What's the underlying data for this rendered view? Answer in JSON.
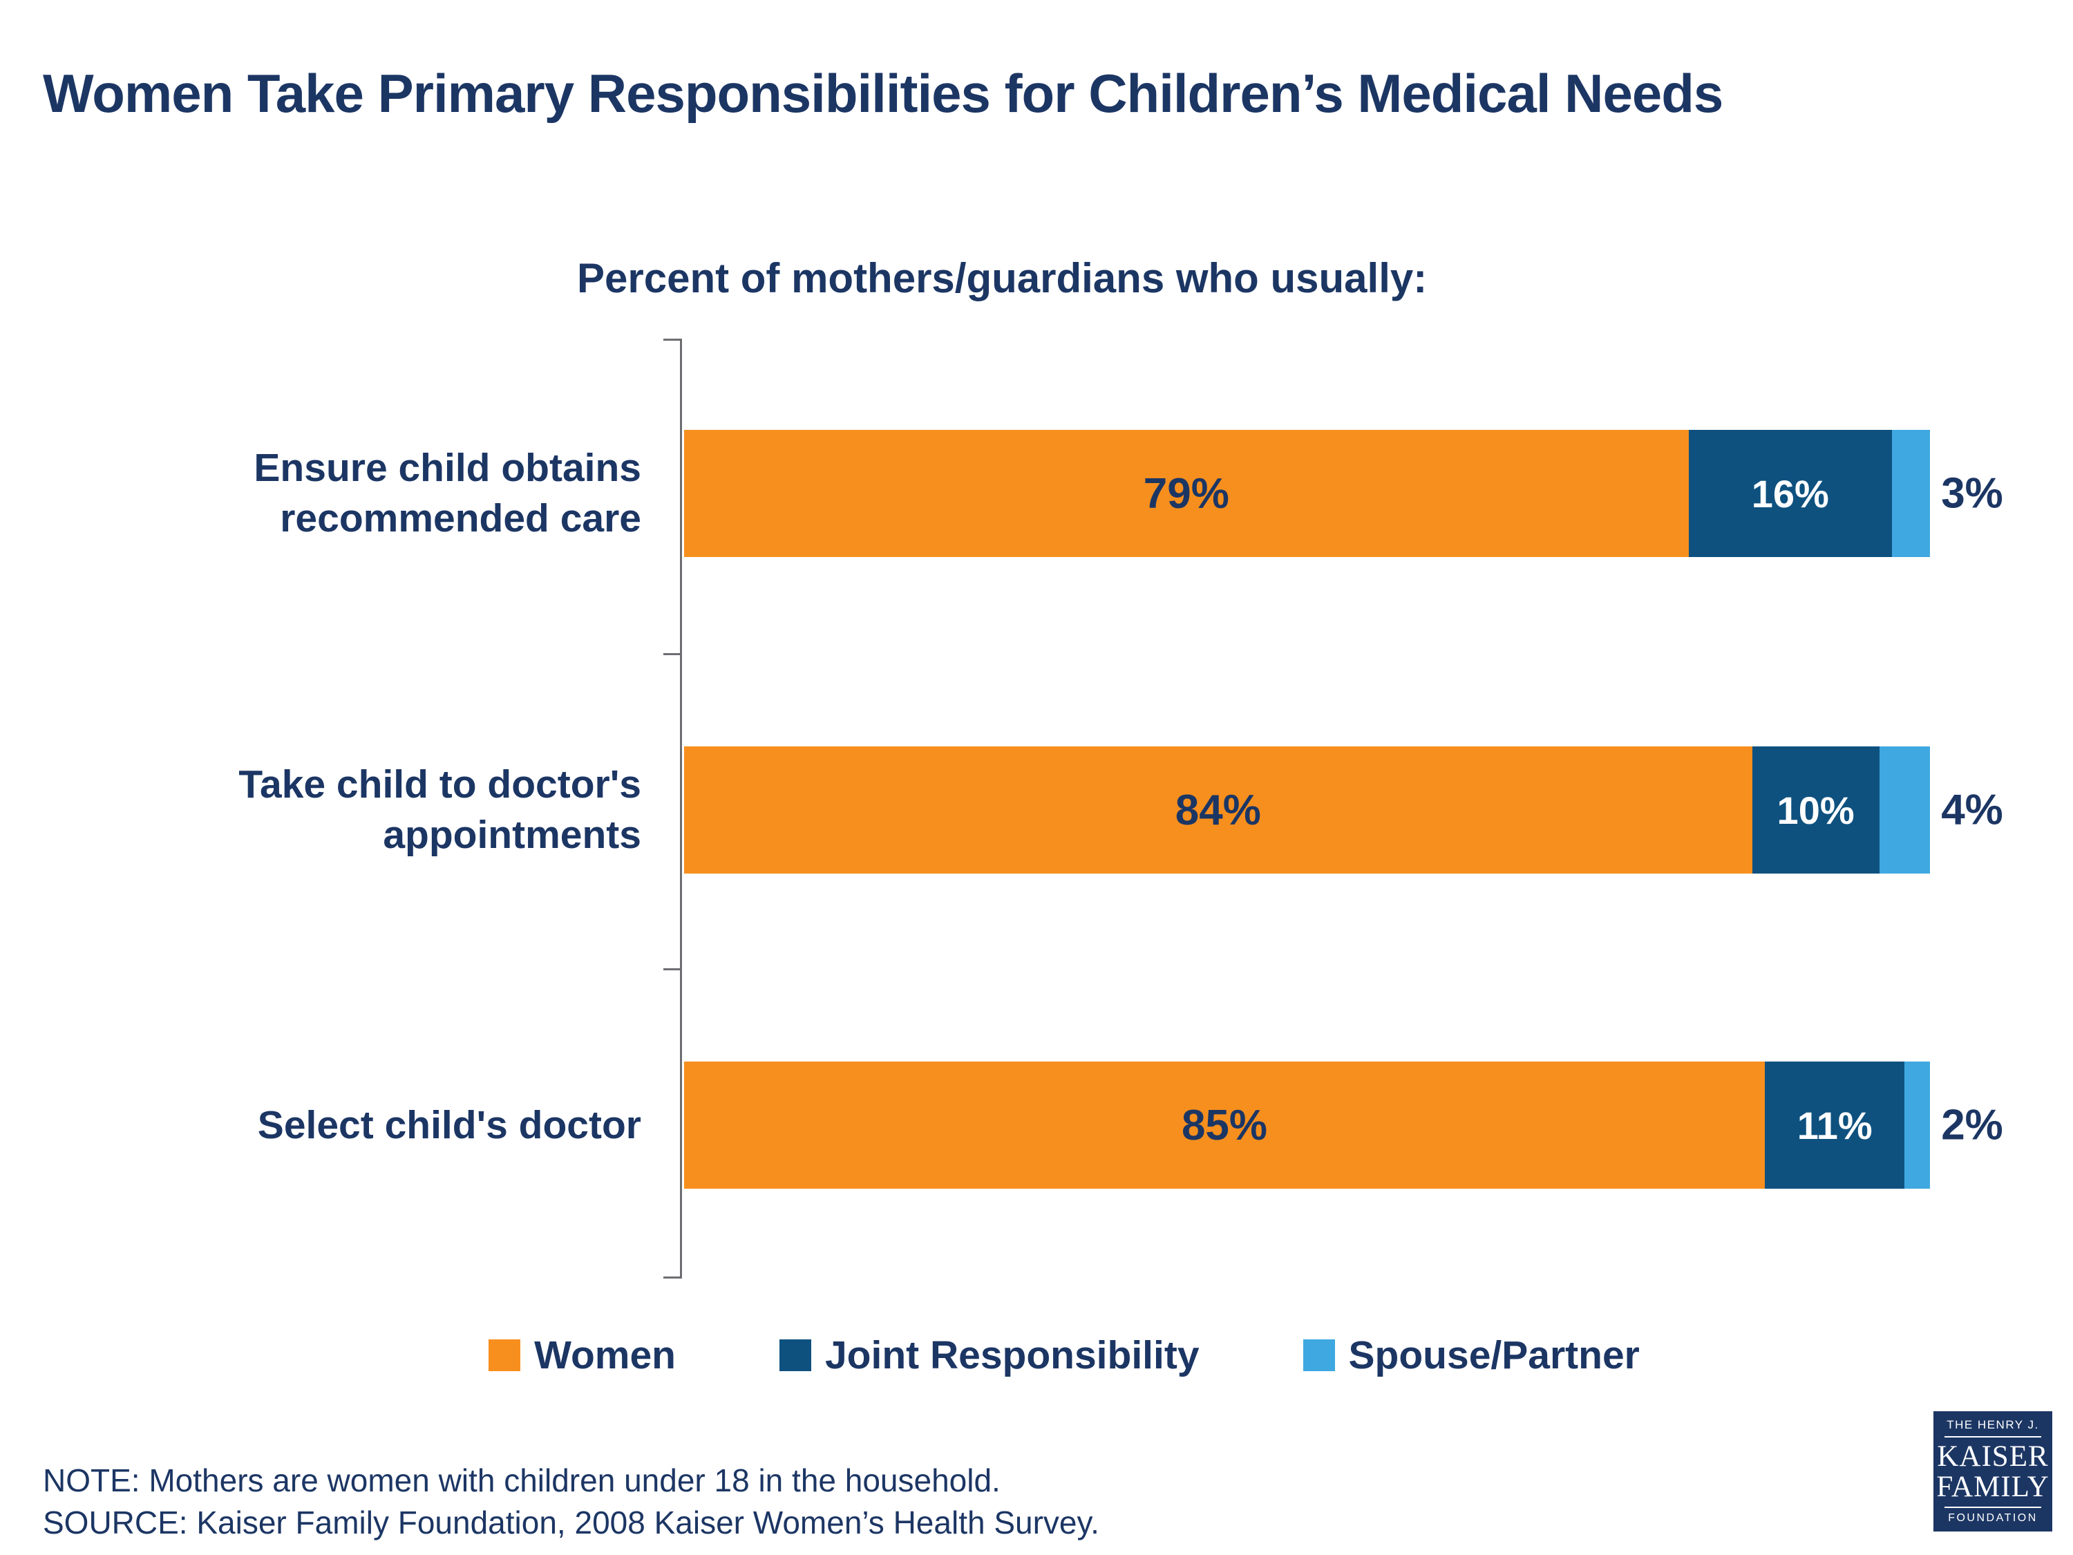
{
  "title": "Women Take Primary Responsibilities for Children’s Medical Needs",
  "chart_data": {
    "type": "bar",
    "orientation": "horizontal-stacked",
    "subtitle": "Percent of mothers/guardians who usually:",
    "series": [
      "Women",
      "Joint Responsibility",
      "Spouse/Partner"
    ],
    "colors": [
      "#F78F1E",
      "#0E517F",
      "#3FA8E0"
    ],
    "categories": [
      "Ensure child obtains recommended care",
      "Take child to doctor's appointments",
      "Select child's doctor"
    ],
    "rows": [
      {
        "category": "Ensure child obtains recommended care",
        "values": [
          79,
          16,
          3
        ],
        "labels": [
          "79%",
          "16%",
          "3%"
        ]
      },
      {
        "category": "Take child to doctor's appointments",
        "values": [
          84,
          10,
          4
        ],
        "labels": [
          "84%",
          "10%",
          "4%"
        ]
      },
      {
        "category": "Select child's doctor",
        "values": [
          85,
          11,
          2
        ],
        "labels": [
          "85%",
          "11%",
          "2%"
        ]
      }
    ],
    "xlim": [
      0,
      100
    ],
    "grid": false,
    "legend_position": "bottom"
  },
  "notes": {
    "note": "NOTE: Mothers are  women with children under 18 in the household.",
    "source": "SOURCE: Kaiser Family Foundation, 2008 Kaiser Women’s Health Survey."
  },
  "logo": {
    "line1": "THE HENRY J.",
    "line2": "KAISER",
    "line3": "FAMILY",
    "line4": "FOUNDATION"
  },
  "colors": {
    "navy_text": "#1C3664",
    "orange": "#F78F1E",
    "dark_blue": "#0E517F",
    "light_blue": "#3FA8E0",
    "axis": "#6d6e71"
  }
}
